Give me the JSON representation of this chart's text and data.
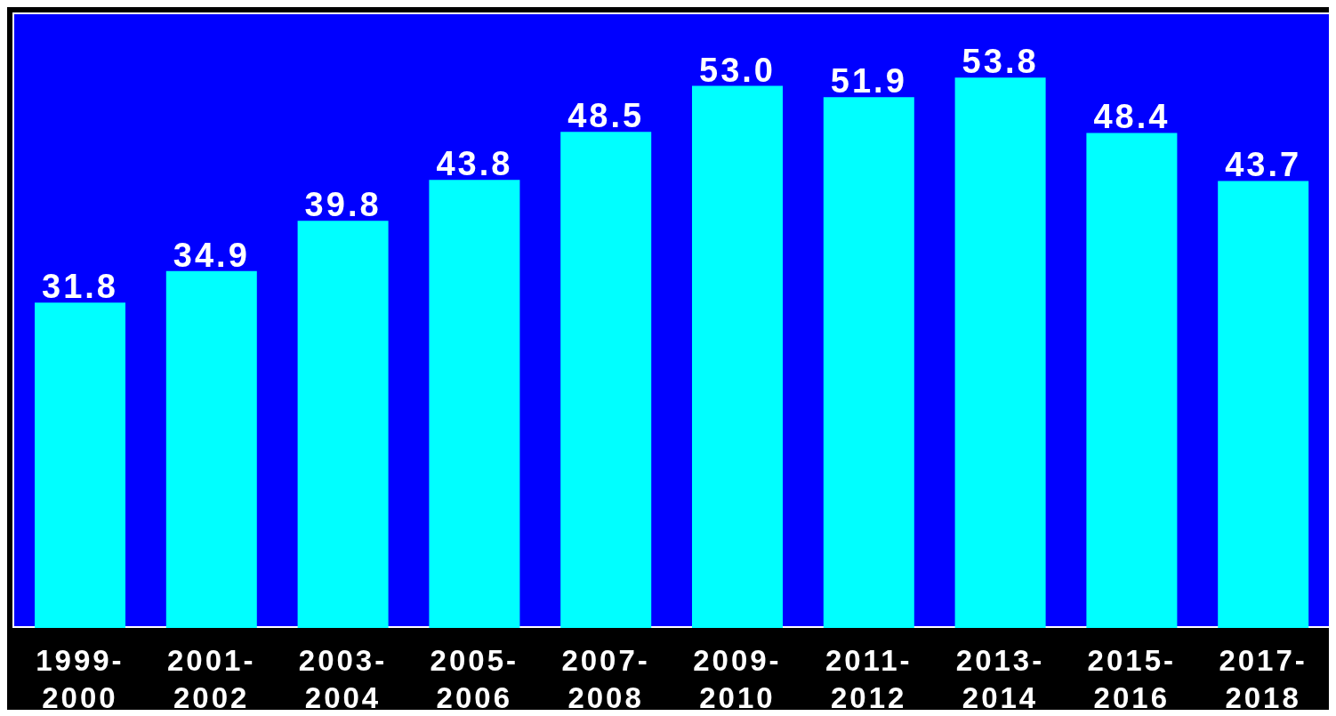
{
  "chart_data": {
    "type": "bar",
    "categories": [
      "1999-2000",
      "2001-2002",
      "2003-2004",
      "2005-2006",
      "2007-2008",
      "2009-2010",
      "2011-2012",
      "2013-2014",
      "2015-2016",
      "2017-2018"
    ],
    "values": [
      31.8,
      34.9,
      39.8,
      43.8,
      48.5,
      53.0,
      51.9,
      53.8,
      48.4,
      43.7
    ],
    "color": "#00ffff",
    "value_labels": [
      "31.8",
      "34.9",
      "39.8",
      "43.8",
      "48.5",
      "53.0",
      "51.9",
      "53.8",
      "48.4",
      "43.7"
    ],
    "tick_labels": "x",
    "grid": false,
    "legend": false
  }
}
